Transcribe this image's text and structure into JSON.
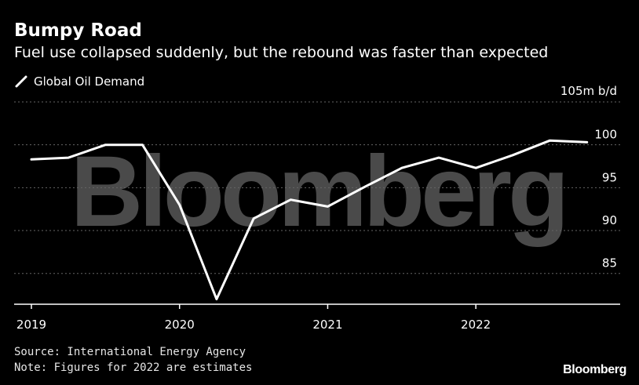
{
  "header": {
    "title": "Bumpy Road",
    "subtitle": "Fuel use collapsed suddenly, but the rebound was faster than expected"
  },
  "legend": {
    "label": "Global Oil Demand"
  },
  "footer": {
    "source": "Source: International Energy Agency",
    "note": "Note: Figures for 2022 are estimates",
    "logo": "Bloomberg"
  },
  "watermark": "Bloomberg",
  "colors": {
    "background": "#000000",
    "line": "#ffffff",
    "grid": "#666666",
    "watermark": "#4a4a4a"
  },
  "chart_data": {
    "type": "line",
    "title": "Bumpy Road",
    "subtitle": "Fuel use collapsed suddenly, but the rebound was faster than expected",
    "unit_label": "105m b/d",
    "y_ticks": [
      85,
      90,
      95,
      100
    ],
    "ylim": [
      81.5,
      105
    ],
    "x_ticks": [
      "2019",
      "2020",
      "2021",
      "2022"
    ],
    "xlim": [
      2019,
      2022.9
    ],
    "grid": true,
    "legend_position": "top-left",
    "series": [
      {
        "name": "Global Oil Demand",
        "color": "#ffffff",
        "points": [
          {
            "x": 2019.0,
            "y": 98.3
          },
          {
            "x": 2019.25,
            "y": 98.5
          },
          {
            "x": 2019.5,
            "y": 100.0
          },
          {
            "x": 2019.75,
            "y": 100.0
          },
          {
            "x": 2020.0,
            "y": 93.0
          },
          {
            "x": 2020.25,
            "y": 82.0
          },
          {
            "x": 2020.5,
            "y": 91.4
          },
          {
            "x": 2020.75,
            "y": 93.6
          },
          {
            "x": 2021.0,
            "y": 92.8
          },
          {
            "x": 2021.25,
            "y": 95.1
          },
          {
            "x": 2021.5,
            "y": 97.3
          },
          {
            "x": 2021.75,
            "y": 98.5
          },
          {
            "x": 2022.0,
            "y": 97.3
          },
          {
            "x": 2022.25,
            "y": 98.8
          },
          {
            "x": 2022.5,
            "y": 100.5
          },
          {
            "x": 2022.75,
            "y": 100.3
          }
        ]
      }
    ]
  }
}
